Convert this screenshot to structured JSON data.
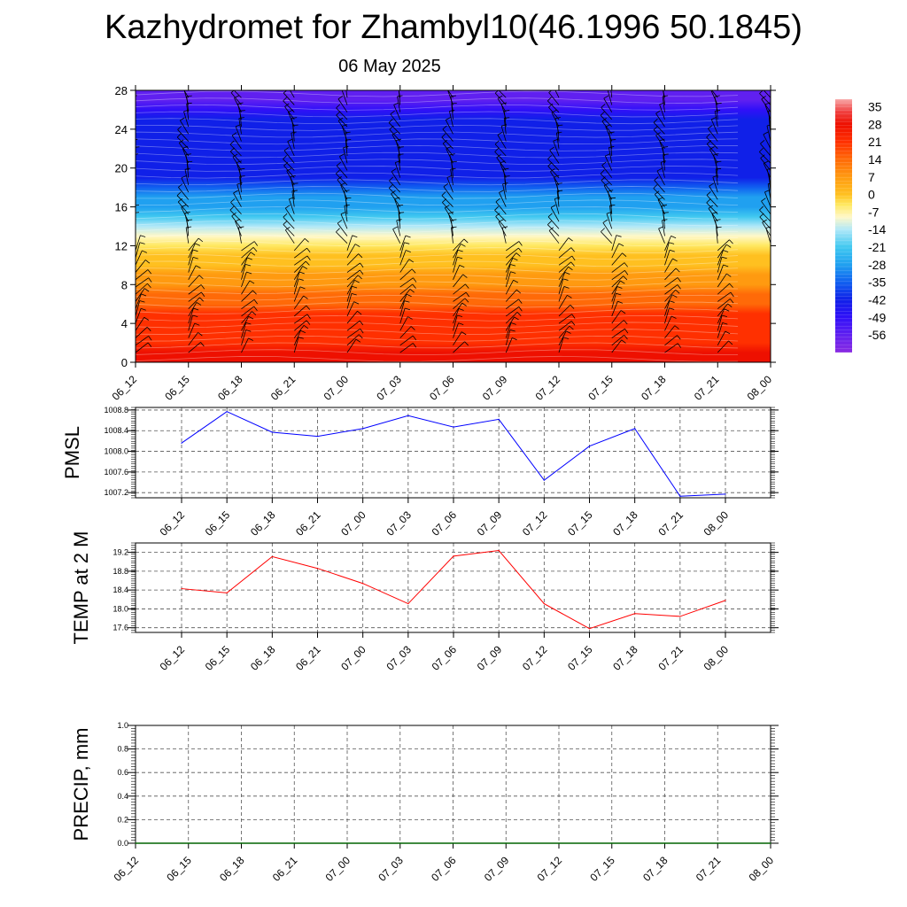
{
  "header": {
    "title": "Kazhydromet for Zhambyl10(46.1996 50.1845)",
    "subtitle": "06 May 2025"
  },
  "colors": {
    "pmsl_line": "#0000ff",
    "temp_line": "#ff0000",
    "precip_line": "#006400",
    "grid": "#555555"
  },
  "chart_data": [
    {
      "type": "heatmap",
      "name": "vertical-cross-section",
      "x": [
        "06_12",
        "06_15",
        "06_18",
        "06_21",
        "07_00",
        "07_03",
        "07_06",
        "07_09",
        "07_12",
        "07_15",
        "07_18",
        "07_21",
        "08_00"
      ],
      "yticks": [
        0,
        4,
        8,
        12,
        16,
        20,
        24,
        28
      ],
      "ylim": [
        0,
        28
      ],
      "colorbar": {
        "labels": [
          "35",
          "28",
          "21",
          "14",
          "7",
          "0",
          "-7",
          "-14",
          "-21",
          "-28",
          "-35",
          "-42",
          "-49",
          "-56"
        ],
        "range": [
          -63,
          38
        ],
        "stops": [
          {
            "v": -63,
            "c": "#8a2be2"
          },
          {
            "v": -56,
            "c": "#6020f0"
          },
          {
            "v": -49,
            "c": "#3010f8"
          },
          {
            "v": -42,
            "c": "#1020e8"
          },
          {
            "v": -35,
            "c": "#1060f0"
          },
          {
            "v": -28,
            "c": "#20a0f0"
          },
          {
            "v": -21,
            "c": "#40c8f0"
          },
          {
            "v": -14,
            "c": "#b0e8f8"
          },
          {
            "v": -9,
            "c": "#fff8c8"
          },
          {
            "v": -4,
            "c": "#ffe860"
          },
          {
            "v": 0,
            "c": "#ffc020"
          },
          {
            "v": 7,
            "c": "#ff9a10"
          },
          {
            "v": 14,
            "c": "#ff6a08"
          },
          {
            "v": 21,
            "c": "#ff3000"
          },
          {
            "v": 28,
            "c": "#ee1000"
          },
          {
            "v": 33,
            "c": "#f04040"
          },
          {
            "v": 38,
            "c": "#f8a8a8"
          }
        ]
      },
      "level_temperature": [
        {
          "level": 0,
          "value": 24
        },
        {
          "level": 4,
          "value": 17
        },
        {
          "level": 8,
          "value": 6
        },
        {
          "level": 12,
          "value": -7
        },
        {
          "level": 16,
          "value": -30
        },
        {
          "level": 20,
          "value": -48
        },
        {
          "level": 24,
          "value": -45
        },
        {
          "level": 28,
          "value": -60
        }
      ],
      "wind_barbs": true
    },
    {
      "type": "line",
      "name": "pmsl",
      "ylabel": "PMSL",
      "x": [
        "06_12",
        "06_15",
        "06_18",
        "06_21",
        "07_00",
        "07_03",
        "07_06",
        "07_09",
        "07_12",
        "07_15",
        "07_18",
        "07_21",
        "08_00"
      ],
      "values": [
        1008.16,
        1008.77,
        1008.37,
        1008.29,
        1008.44,
        1008.69,
        1008.47,
        1008.62,
        1007.44,
        1008.1,
        1008.44,
        1007.13,
        1007.17
      ],
      "yticks": [
        "1007.2",
        "1007.6",
        "1008.0",
        "1008.4",
        "1008.8"
      ],
      "ylim": [
        1007.1,
        1008.85
      ],
      "grid": true
    },
    {
      "type": "line",
      "name": "temp",
      "ylabel": "TEMP at 2 M",
      "x": [
        "06_12",
        "06_15",
        "06_18",
        "06_21",
        "07_00",
        "07_03",
        "07_06",
        "07_09",
        "07_12",
        "07_15",
        "07_18",
        "07_21",
        "08_00"
      ],
      "values": [
        18.43,
        18.34,
        19.11,
        18.86,
        18.54,
        18.11,
        19.12,
        19.24,
        18.11,
        17.58,
        17.9,
        17.84,
        18.18
      ],
      "yticks": [
        "17.6",
        "18.0",
        "18.4",
        "18.8",
        "19.2"
      ],
      "ylim": [
        17.5,
        19.4
      ],
      "grid": true
    },
    {
      "type": "line",
      "name": "precip",
      "ylabel": "PRECIP, mm",
      "x": [
        "06_12",
        "06_15",
        "06_18",
        "06_21",
        "07_00",
        "07_03",
        "07_06",
        "07_09",
        "07_12",
        "07_15",
        "07_18",
        "07_21",
        "08_00"
      ],
      "values": [
        0,
        0,
        0,
        0,
        0,
        0,
        0,
        0,
        0,
        0,
        0,
        0,
        0
      ],
      "yticks": [
        "0.0",
        "0.2",
        "0.4",
        "0.6",
        "0.8",
        "1.0"
      ],
      "ylim": [
        0,
        1
      ],
      "grid": true
    }
  ]
}
